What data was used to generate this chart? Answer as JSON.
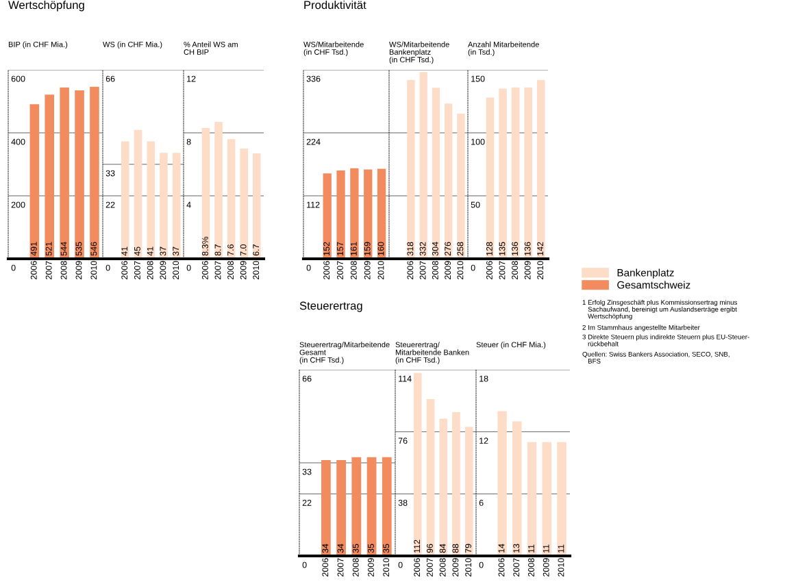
{
  "chart_data": [
    {
      "type": "bar",
      "title": "Wertschöpfung",
      "subtitle": "BIP (in CHF Mia.)",
      "categories": [
        "2006",
        "2007",
        "2008",
        "2009",
        "2010"
      ],
      "series": [
        {
          "color": "#f28b5e",
          "values": [
            491,
            521,
            544,
            535,
            546
          ]
        }
      ],
      "ylim": [
        0,
        600
      ],
      "yticks": [
        0,
        200,
        400,
        600
      ],
      "grid": "y",
      "data_labels": true
    },
    {
      "type": "bar",
      "subtitle": "WS (in CHF Mia.)",
      "categories": [
        "2006",
        "2007",
        "2008",
        "2009",
        "2010"
      ],
      "series": [
        {
          "color": "#fddcc8",
          "values": [
            41,
            45,
            41,
            37,
            37
          ]
        }
      ],
      "ylim": [
        0,
        66
      ],
      "yticks": [
        0,
        22,
        33,
        66
      ],
      "grid": "y",
      "data_labels": true
    },
    {
      "type": "bar",
      "subtitle": "% Anteil WS am\nCH BIP",
      "categories": [
        "2006",
        "2007",
        "2008",
        "2009",
        "2010"
      ],
      "series": [
        {
          "color": "#fddcc8",
          "values": [
            8.3,
            8.7,
            7.6,
            7.0,
            6.7
          ]
        }
      ],
      "ylim": [
        0,
        12
      ],
      "yticks": [
        0,
        4,
        8,
        12
      ],
      "grid": "y",
      "value_labels": [
        "8.3%",
        "8.7",
        "7.6",
        "7.0",
        "6.7"
      ]
    },
    {
      "type": "bar",
      "title": "Produktivität",
      "subtitle": "WS/Mitarbeitende\n(in CHF Tsd.)",
      "categories": [
        "2006",
        "2007",
        "2008",
        "2009",
        "2010"
      ],
      "series": [
        {
          "color": "#f28b5e",
          "values": [
            152,
            157,
            161,
            159,
            160
          ]
        }
      ],
      "ylim": [
        0,
        336
      ],
      "yticks": [
        0,
        112,
        224,
        336
      ],
      "grid": "y",
      "data_labels": true
    },
    {
      "type": "bar",
      "subtitle": "WS/Mitarbeitende\nBankenplatz\n(in CHF Tsd.)",
      "categories": [
        "2006",
        "2007",
        "2008",
        "2009",
        "2010"
      ],
      "series": [
        {
          "color": "#fddcc8",
          "values": [
            318,
            332,
            304,
            276,
            258
          ]
        }
      ],
      "ylim": [
        0,
        336
      ],
      "yticks": [
        0,
        112,
        224,
        336
      ],
      "grid": "y",
      "tick_labels": "x",
      "data_labels": true
    },
    {
      "type": "bar",
      "subtitle": "Anzahl Mitarbeitende\n(in Tsd.)",
      "categories": [
        "2006",
        "2007",
        "2008",
        "2009",
        "2010"
      ],
      "series": [
        {
          "color": "#fddcc8",
          "values": [
            128,
            135,
            136,
            136,
            142
          ]
        }
      ],
      "ylim": [
        0,
        150
      ],
      "yticks": [
        0,
        50,
        100,
        150
      ],
      "grid": "y",
      "data_labels": true
    },
    {
      "type": "bar",
      "title": "Steuerertrag",
      "subtitle": "Steuerertrag/Mitarbeitende\nGesamt\n(in CHF Tsd.)",
      "categories": [
        "2006",
        "2007",
        "2008",
        "2009",
        "2010"
      ],
      "series": [
        {
          "color": "#f28b5e",
          "values": [
            34,
            34,
            35,
            35,
            35
          ]
        }
      ],
      "ylim": [
        0,
        66
      ],
      "yticks": [
        0,
        22,
        33,
        66
      ],
      "grid": "y",
      "data_labels": true
    },
    {
      "type": "bar",
      "subtitle": "Steuerertrag/\nMitarbeitende Banken\n(in CHF Tsd.)",
      "categories": [
        "2006",
        "2007",
        "2008",
        "2009",
        "2010"
      ],
      "series": [
        {
          "color": "#fddcc8",
          "values": [
            112,
            96,
            84,
            88,
            79
          ]
        }
      ],
      "ylim": [
        0,
        114
      ],
      "yticks": [
        0,
        38,
        76,
        114
      ],
      "grid": "y",
      "data_labels": true
    },
    {
      "type": "bar",
      "subtitle": "Steuer (in CHF Mia.)",
      "categories": [
        "2006",
        "2007",
        "2008",
        "2009",
        "2010"
      ],
      "series": [
        {
          "color": "#fddcc8",
          "values": [
            14,
            13,
            11,
            11,
            11
          ]
        }
      ],
      "ylim": [
        0,
        18
      ],
      "yticks": [
        0,
        6,
        12,
        18
      ],
      "grid": "y",
      "data_labels": true
    },
    {
      "type": "other",
      "series": [
        {
          "name": "Bankenplatz",
          "color": "#fddcc8"
        },
        {
          "name": "Gesamtschweiz",
          "color": "#f28b5e"
        }
      ],
      "legend": "top left",
      "annotations": [
        "1 Erfolg Zinsgeschäft plus Kommissionsertrag minus\n   Sachaufwand, bereinigt um Auslandserträge ergibt\n   Wertschöpfung",
        "2 Im Stammhaus angestellte Mitarbeiter",
        "3 Direkte Steuern plus indirekte Steuern plus EU-Steuer-\n   rückbehalt",
        "Quellen: Swiss Bankers Association, SECO, SNB,\n   BFS"
      ]
    }
  ]
}
